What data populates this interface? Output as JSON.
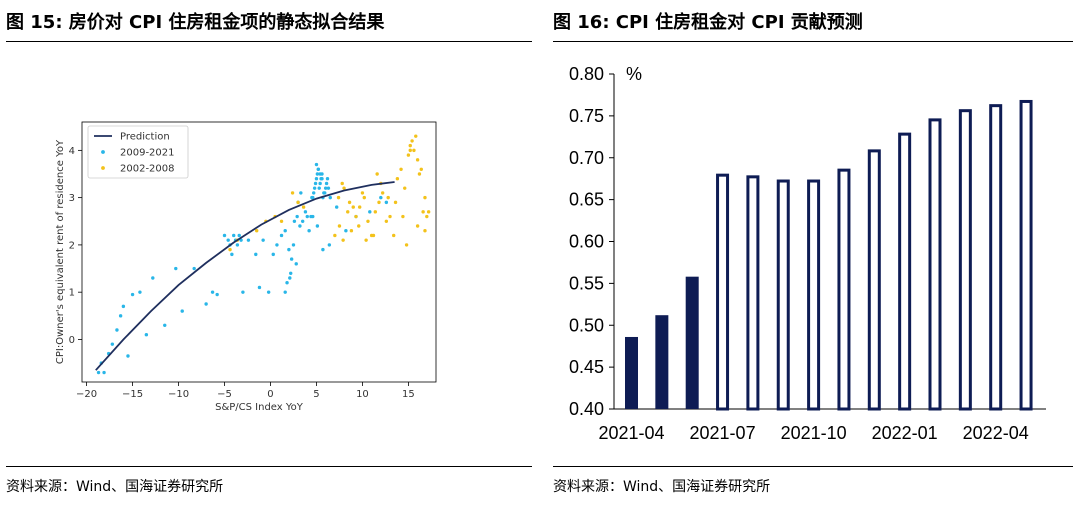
{
  "left": {
    "title": "图 15:  房价对 CPI 住房租金项的静态拟合结果",
    "source": "资料来源：Wind、国海证券研究所"
  },
  "right": {
    "title": "图 16:  CPI 住房租金对 CPI 贡献预测",
    "source": "资料来源：Wind、国海证券研究所"
  },
  "colors": {
    "prediction": "#1f2f5e",
    "s0921": "#29b6e8",
    "s0208": "#f3c21b",
    "bar": "#0e1c54"
  },
  "chart_data": [
    {
      "type": "scatter",
      "xlabel": "S&P/CS Index YoY",
      "ylabel": "CPI:Owner's equivalent rent of residence YoY",
      "xlim": [
        -20.5,
        18
      ],
      "ylim": [
        -0.9,
        4.6
      ],
      "xticks": [
        -20,
        -15,
        -10,
        -5,
        0,
        5,
        10,
        15
      ],
      "yticks": [
        0,
        1,
        2,
        3,
        4
      ],
      "legend_position": "upper-left",
      "series": [
        {
          "name": "Prediction",
          "kind": "line",
          "x": [
            -19,
            -16,
            -13,
            -10,
            -7,
            -4,
            -1,
            2,
            5,
            8,
            11,
            13.5
          ],
          "y": [
            -0.65,
            0.0,
            0.6,
            1.15,
            1.62,
            2.05,
            2.43,
            2.74,
            2.98,
            3.15,
            3.27,
            3.33
          ]
        },
        {
          "name": "2009-2021",
          "kind": "points",
          "x": [
            -18.7,
            -18.4,
            -18.1,
            -17.6,
            -17.2,
            -16.7,
            -16.3,
            -16.0,
            -15.5,
            -15.0,
            -14.2,
            -13.5,
            -12.8,
            -11.5,
            -10.3,
            -9.6,
            -8.3,
            -7.0,
            -6.3,
            -5.8,
            -5.0,
            -4.6,
            -4.4,
            -4.2,
            -4.0,
            -3.8,
            -3.6,
            -3.4,
            -3.2,
            -3.0,
            -2.4,
            -1.6,
            -1.2,
            -0.8,
            -0.2,
            0.3,
            0.7,
            1.2,
            1.6,
            2.0,
            2.3,
            2.6,
            2.9,
            3.2,
            3.5,
            3.8,
            4.0,
            4.2,
            4.4,
            4.6,
            4.8,
            5.0,
            5.2,
            5.4,
            5.6,
            5.8,
            6.0,
            6.2,
            4.5,
            4.7,
            4.9,
            5.1,
            5.3,
            5.5,
            5.7,
            5.9,
            6.1,
            6.3,
            6.5,
            5.0,
            5.2,
            5.4,
            5.6,
            3.0,
            3.3,
            2.5,
            2.8,
            2.2,
            1.8,
            1.6,
            2.1,
            4.6,
            5.1,
            5.7,
            6.4,
            7.2,
            8.2,
            9.3,
            10.8,
            12.0,
            12.6
          ],
          "y": [
            -0.7,
            -0.5,
            -0.7,
            -0.3,
            -0.1,
            0.2,
            0.5,
            0.7,
            -0.35,
            0.95,
            1.0,
            0.1,
            1.3,
            0.3,
            1.5,
            0.6,
            1.5,
            0.75,
            1.0,
            0.95,
            2.2,
            2.1,
            2.0,
            1.8,
            2.2,
            2.1,
            2.0,
            2.2,
            2.1,
            1.0,
            2.1,
            1.8,
            1.1,
            2.1,
            1.0,
            1.8,
            2.0,
            2.2,
            2.3,
            1.9,
            1.7,
            2.5,
            2.6,
            2.4,
            2.5,
            2.7,
            2.6,
            2.3,
            2.6,
            3.0,
            3.2,
            3.4,
            3.6,
            3.3,
            3.5,
            3.1,
            3.2,
            3.4,
            3.0,
            3.1,
            3.3,
            3.5,
            3.2,
            3.4,
            3.0,
            3.1,
            3.3,
            3.2,
            3.0,
            3.7,
            3.6,
            3.5,
            3.4,
            2.9,
            3.1,
            2.0,
            1.6,
            1.4,
            1.2,
            1.0,
            1.3,
            2.6,
            2.4,
            1.9,
            2.0,
            2.8,
            2.3,
            2.6,
            2.7,
            3.0,
            2.9
          ]
        },
        {
          "name": "2002-2008",
          "kind": "points",
          "x": [
            -4.4,
            -3.6,
            -1.5,
            -0.5,
            0.5,
            1.2,
            2.4,
            3.0,
            3.6,
            7.0,
            7.5,
            7.9,
            8.4,
            8.8,
            9.3,
            9.7,
            10.2,
            10.6,
            11.0,
            11.4,
            11.8,
            12.2,
            12.6,
            13.0,
            13.4,
            13.8,
            14.2,
            14.6,
            15.0,
            15.4,
            15.8,
            16.2,
            16.6,
            17.0,
            14.8,
            15.2,
            15.6,
            16.0,
            16.4,
            16.8,
            9.0,
            9.6,
            10.4,
            11.2,
            12.0,
            12.8,
            13.6,
            14.4,
            15.2,
            16.0,
            16.8,
            17.2,
            8.0,
            8.6,
            10.0,
            11.6,
            7.4,
            7.8
          ],
          "y": [
            1.9,
            2.1,
            2.3,
            2.5,
            2.6,
            2.5,
            3.1,
            2.9,
            2.8,
            2.2,
            2.4,
            2.1,
            2.7,
            2.3,
            2.6,
            2.8,
            3.0,
            2.5,
            2.2,
            2.7,
            2.9,
            3.1,
            2.5,
            2.6,
            2.2,
            3.4,
            3.6,
            3.2,
            3.9,
            4.2,
            4.3,
            3.5,
            2.7,
            2.6,
            2.0,
            4.1,
            4.0,
            3.8,
            3.6,
            3.0,
            2.8,
            2.4,
            2.1,
            2.2,
            3.3,
            3.0,
            2.9,
            2.6,
            4.0,
            2.4,
            2.3,
            2.7,
            3.2,
            2.9,
            3.1,
            3.5,
            3.0,
            3.3
          ]
        }
      ]
    },
    {
      "type": "bar",
      "ylabel": "%",
      "ylim": [
        0.4,
        0.8
      ],
      "yticks": [
        0.8,
        0.75,
        0.7,
        0.65,
        0.6,
        0.55,
        0.5,
        0.45,
        0.4
      ],
      "x_tick_labels": [
        "2021-04",
        "2021-07",
        "2021-10",
        "2022-01",
        "2022-04"
      ],
      "categories": [
        "2021-04",
        "2021-05",
        "2021-06",
        "2021-07",
        "2021-08",
        "2021-09",
        "2021-10",
        "2021-11",
        "2021-12",
        "2022-01",
        "2022-02",
        "2022-03",
        "2022-04",
        "2022-05"
      ],
      "values": [
        0.486,
        0.512,
        0.558,
        0.681,
        0.679,
        0.674,
        0.674,
        0.687,
        0.71,
        0.73,
        0.747,
        0.758,
        0.764,
        0.769
      ],
      "kinds": [
        "actual",
        "actual",
        "actual",
        "forecast",
        "forecast",
        "forecast",
        "forecast",
        "forecast",
        "forecast",
        "forecast",
        "forecast",
        "forecast",
        "forecast",
        "forecast"
      ]
    }
  ]
}
